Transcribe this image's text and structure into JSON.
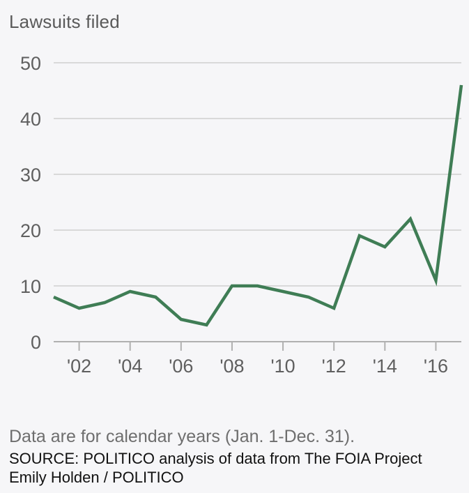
{
  "chart_data": {
    "type": "line",
    "title": "Lawsuits filed",
    "xlabel": "",
    "ylabel": "",
    "x": [
      2001,
      2002,
      2003,
      2004,
      2005,
      2006,
      2007,
      2008,
      2009,
      2010,
      2011,
      2012,
      2013,
      2014,
      2015,
      2016,
      2017
    ],
    "series": [
      {
        "name": "Lawsuits filed",
        "color": "#3f7d55",
        "values": [
          8,
          6,
          7,
          9,
          8,
          4,
          3,
          10,
          10,
          9,
          8,
          6,
          19,
          17,
          22,
          11,
          46
        ]
      }
    ],
    "xlim": [
      2001,
      2017
    ],
    "ylim": [
      0,
      50
    ],
    "yticks": [
      0,
      10,
      20,
      30,
      40,
      50
    ],
    "ytick_labels": [
      "0",
      "10",
      "20",
      "30",
      "40",
      "50"
    ],
    "xticks": [
      2002,
      2004,
      2006,
      2008,
      2010,
      2012,
      2014,
      2016
    ],
    "xtick_labels": [
      "'02",
      "'04",
      "'06",
      "'08",
      "'10",
      "'12",
      "'14",
      "'16"
    ],
    "grid": true,
    "legend": "none"
  },
  "footer": {
    "note": "Data are for calendar years (Jan. 1-Dec. 31).",
    "source": "SOURCE: POLITICO analysis of data from The FOIA Project",
    "credit": "Emily Holden / POLITICO"
  },
  "colors": {
    "background": "#f6f6f8",
    "line": "#3f7d55",
    "grid": "#d9d9d9",
    "axis": "#b0b0b0"
  }
}
